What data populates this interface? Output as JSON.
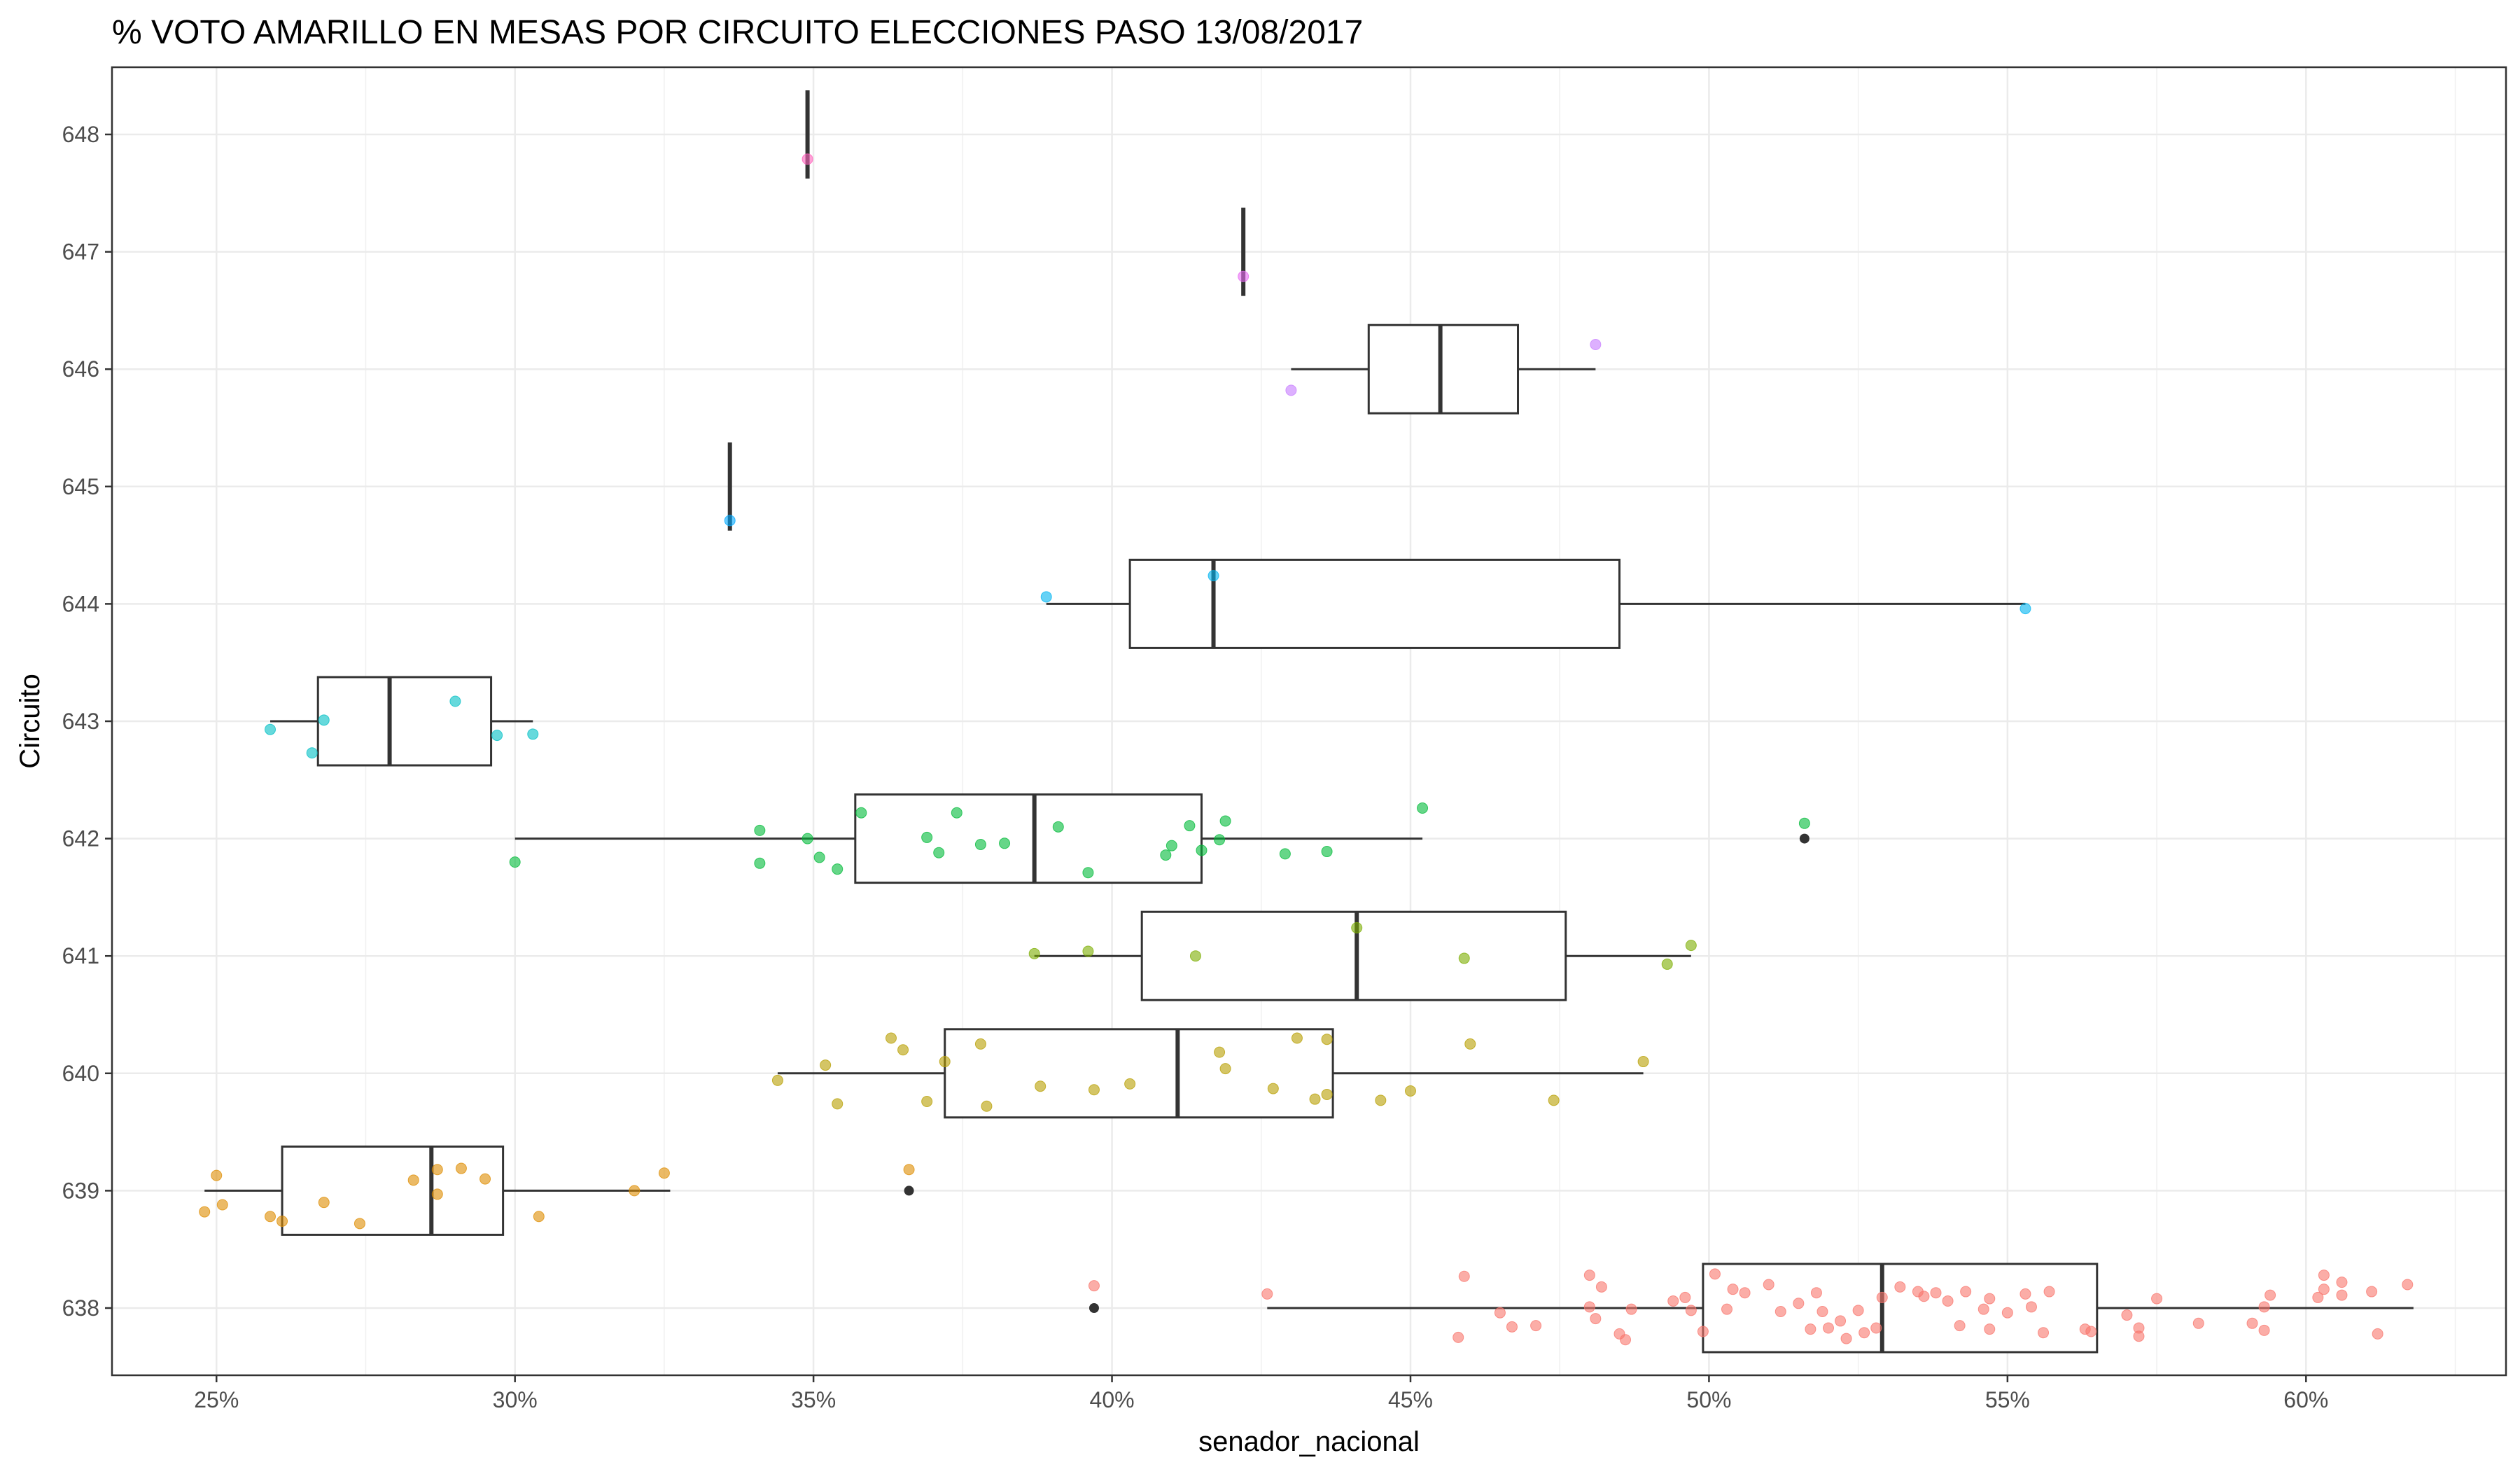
{
  "chart_data": {
    "type": "boxplot",
    "orientation": "horizontal",
    "title": "% VOTO AMARILLO EN MESAS POR CIRCUITO  ELECCIONES PASO 13/08/2017",
    "xlabel": "senador_nacional",
    "ylabel": "Circuito",
    "xlim": [
      0.2325,
      0.6335
    ],
    "x_ticks": [
      0.25,
      0.3,
      0.35,
      0.4,
      0.45,
      0.5,
      0.55,
      0.6
    ],
    "x_tick_labels": [
      "25%",
      "30%",
      "35%",
      "40%",
      "45%",
      "50%",
      "55%",
      "60%"
    ],
    "categories": [
      "638",
      "639",
      "640",
      "641",
      "642",
      "643",
      "644",
      "645",
      "646",
      "647",
      "648"
    ],
    "grid": true,
    "legend": "none",
    "boxes": [
      {
        "circuito": "638",
        "color": "#F8766D",
        "whisker_low": 0.426,
        "q1": 0.499,
        "median": 0.529,
        "q3": 0.565,
        "whisker_high": 0.618,
        "outliers": [
          0.397
        ]
      },
      {
        "circuito": "639",
        "color": "#DE8C00",
        "whisker_low": 0.248,
        "q1": 0.261,
        "median": 0.286,
        "q3": 0.298,
        "whisker_high": 0.326,
        "outliers": [
          0.366
        ]
      },
      {
        "circuito": "640",
        "color": "#B79F00",
        "whisker_low": 0.344,
        "q1": 0.372,
        "median": 0.411,
        "q3": 0.437,
        "whisker_high": 0.489,
        "outliers": []
      },
      {
        "circuito": "641",
        "color": "#7CAE00",
        "whisker_low": 0.387,
        "q1": 0.405,
        "median": 0.441,
        "q3": 0.476,
        "whisker_high": 0.497,
        "outliers": []
      },
      {
        "circuito": "642",
        "color": "#00BA38",
        "whisker_low": 0.3,
        "q1": 0.357,
        "median": 0.387,
        "q3": 0.415,
        "whisker_high": 0.452,
        "outliers": [
          0.516
        ]
      },
      {
        "circuito": "643",
        "color": "#00BFC4",
        "whisker_low": 0.259,
        "q1": 0.267,
        "median": 0.279,
        "q3": 0.296,
        "whisker_high": 0.303,
        "outliers": []
      },
      {
        "circuito": "644",
        "color": "#00B4F0",
        "whisker_low": 0.389,
        "q1": 0.403,
        "median": 0.417,
        "q3": 0.485,
        "whisker_high": 0.553,
        "outliers": []
      },
      {
        "circuito": "645",
        "color": "#00A9FF",
        "whisker_low": 0.336,
        "q1": 0.336,
        "median": 0.336,
        "q3": 0.336,
        "whisker_high": 0.336,
        "outliers": []
      },
      {
        "circuito": "646",
        "color": "#C77CFF",
        "whisker_low": 0.43,
        "q1": 0.443,
        "median": 0.455,
        "q3": 0.468,
        "whisker_high": 0.481,
        "outliers": []
      },
      {
        "circuito": "647",
        "color": "#E76BF3",
        "whisker_low": 0.422,
        "q1": 0.422,
        "median": 0.422,
        "q3": 0.422,
        "whisker_high": 0.422,
        "outliers": []
      },
      {
        "circuito": "648",
        "color": "#FF62BC",
        "whisker_low": 0.349,
        "q1": 0.349,
        "median": 0.349,
        "q3": 0.349,
        "whisker_high": 0.349,
        "outliers": []
      }
    ],
    "points": [
      {
        "circuito": "638",
        "x": 0.397,
        "y": 638.19
      },
      {
        "circuito": "638",
        "x": 0.426,
        "y": 638.12
      },
      {
        "circuito": "638",
        "x": 0.459,
        "y": 638.27
      },
      {
        "circuito": "638",
        "x": 0.458,
        "y": 637.75
      },
      {
        "circuito": "638",
        "x": 0.465,
        "y": 637.96
      },
      {
        "circuito": "638",
        "x": 0.467,
        "y": 637.84
      },
      {
        "circuito": "638",
        "x": 0.471,
        "y": 637.85
      },
      {
        "circuito": "638",
        "x": 0.48,
        "y": 638.28
      },
      {
        "circuito": "638",
        "x": 0.482,
        "y": 638.18
      },
      {
        "circuito": "638",
        "x": 0.48,
        "y": 638.01
      },
      {
        "circuito": "638",
        "x": 0.481,
        "y": 637.91
      },
      {
        "circuito": "638",
        "x": 0.485,
        "y": 637.78
      },
      {
        "circuito": "638",
        "x": 0.486,
        "y": 637.73
      },
      {
        "circuito": "638",
        "x": 0.487,
        "y": 637.99
      },
      {
        "circuito": "638",
        "x": 0.494,
        "y": 638.06
      },
      {
        "circuito": "638",
        "x": 0.496,
        "y": 638.09
      },
      {
        "circuito": "638",
        "x": 0.497,
        "y": 637.98
      },
      {
        "circuito": "638",
        "x": 0.499,
        "y": 637.8
      },
      {
        "circuito": "638",
        "x": 0.501,
        "y": 638.29
      },
      {
        "circuito": "638",
        "x": 0.503,
        "y": 637.99
      },
      {
        "circuito": "638",
        "x": 0.504,
        "y": 638.16
      },
      {
        "circuito": "638",
        "x": 0.506,
        "y": 638.13
      },
      {
        "circuito": "638",
        "x": 0.51,
        "y": 638.2
      },
      {
        "circuito": "638",
        "x": 0.512,
        "y": 637.97
      },
      {
        "circuito": "638",
        "x": 0.515,
        "y": 638.04
      },
      {
        "circuito": "638",
        "x": 0.517,
        "y": 637.82
      },
      {
        "circuito": "638",
        "x": 0.518,
        "y": 638.13
      },
      {
        "circuito": "638",
        "x": 0.519,
        "y": 637.97
      },
      {
        "circuito": "638",
        "x": 0.52,
        "y": 637.83
      },
      {
        "circuito": "638",
        "x": 0.522,
        "y": 637.89
      },
      {
        "circuito": "638",
        "x": 0.523,
        "y": 637.74
      },
      {
        "circuito": "638",
        "x": 0.525,
        "y": 637.98
      },
      {
        "circuito": "638",
        "x": 0.526,
        "y": 637.79
      },
      {
        "circuito": "638",
        "x": 0.528,
        "y": 637.83
      },
      {
        "circuito": "638",
        "x": 0.529,
        "y": 638.09
      },
      {
        "circuito": "638",
        "x": 0.532,
        "y": 638.18
      },
      {
        "circuito": "638",
        "x": 0.535,
        "y": 638.14
      },
      {
        "circuito": "638",
        "x": 0.536,
        "y": 638.1
      },
      {
        "circuito": "638",
        "x": 0.538,
        "y": 638.13
      },
      {
        "circuito": "638",
        "x": 0.54,
        "y": 638.06
      },
      {
        "circuito": "638",
        "x": 0.542,
        "y": 637.85
      },
      {
        "circuito": "638",
        "x": 0.543,
        "y": 638.14
      },
      {
        "circuito": "638",
        "x": 0.546,
        "y": 637.99
      },
      {
        "circuito": "638",
        "x": 0.547,
        "y": 637.82
      },
      {
        "circuito": "638",
        "x": 0.547,
        "y": 638.08
      },
      {
        "circuito": "638",
        "x": 0.55,
        "y": 637.96
      },
      {
        "circuito": "638",
        "x": 0.553,
        "y": 638.12
      },
      {
        "circuito": "638",
        "x": 0.554,
        "y": 638.01
      },
      {
        "circuito": "638",
        "x": 0.556,
        "y": 637.79
      },
      {
        "circuito": "638",
        "x": 0.557,
        "y": 638.14
      },
      {
        "circuito": "638",
        "x": 0.563,
        "y": 637.82
      },
      {
        "circuito": "638",
        "x": 0.564,
        "y": 637.8
      },
      {
        "circuito": "638",
        "x": 0.57,
        "y": 637.94
      },
      {
        "circuito": "638",
        "x": 0.572,
        "y": 637.83
      },
      {
        "circuito": "638",
        "x": 0.572,
        "y": 637.76
      },
      {
        "circuito": "638",
        "x": 0.575,
        "y": 638.08
      },
      {
        "circuito": "638",
        "x": 0.582,
        "y": 637.87
      },
      {
        "circuito": "638",
        "x": 0.591,
        "y": 637.87
      },
      {
        "circuito": "638",
        "x": 0.593,
        "y": 638.01
      },
      {
        "circuito": "638",
        "x": 0.594,
        "y": 638.11
      },
      {
        "circuito": "638",
        "x": 0.593,
        "y": 637.81
      },
      {
        "circuito": "638",
        "x": 0.603,
        "y": 638.28
      },
      {
        "circuito": "638",
        "x": 0.603,
        "y": 638.16
      },
      {
        "circuito": "638",
        "x": 0.602,
        "y": 638.09
      },
      {
        "circuito": "638",
        "x": 0.606,
        "y": 638.22
      },
      {
        "circuito": "638",
        "x": 0.606,
        "y": 638.11
      },
      {
        "circuito": "638",
        "x": 0.611,
        "y": 638.14
      },
      {
        "circuito": "638",
        "x": 0.612,
        "y": 637.78
      },
      {
        "circuito": "638",
        "x": 0.617,
        "y": 638.2
      },
      {
        "circuito": "639",
        "x": 0.248,
        "y": 638.82
      },
      {
        "circuito": "639",
        "x": 0.25,
        "y": 639.13
      },
      {
        "circuito": "639",
        "x": 0.251,
        "y": 638.88
      },
      {
        "circuito": "639",
        "x": 0.259,
        "y": 638.78
      },
      {
        "circuito": "639",
        "x": 0.261,
        "y": 638.74
      },
      {
        "circuito": "639",
        "x": 0.268,
        "y": 638.9
      },
      {
        "circuito": "639",
        "x": 0.274,
        "y": 638.72
      },
      {
        "circuito": "639",
        "x": 0.283,
        "y": 639.09
      },
      {
        "circuito": "639",
        "x": 0.287,
        "y": 639.18
      },
      {
        "circuito": "639",
        "x": 0.287,
        "y": 638.97
      },
      {
        "circuito": "639",
        "x": 0.291,
        "y": 639.19
      },
      {
        "circuito": "639",
        "x": 0.295,
        "y": 639.1
      },
      {
        "circuito": "639",
        "x": 0.304,
        "y": 638.78
      },
      {
        "circuito": "639",
        "x": 0.32,
        "y": 639.0
      },
      {
        "circuito": "639",
        "x": 0.325,
        "y": 639.15
      },
      {
        "circuito": "639",
        "x": 0.366,
        "y": 639.18
      },
      {
        "circuito": "640",
        "x": 0.344,
        "y": 639.94
      },
      {
        "circuito": "640",
        "x": 0.352,
        "y": 640.07
      },
      {
        "circuito": "640",
        "x": 0.354,
        "y": 639.74
      },
      {
        "circuito": "640",
        "x": 0.363,
        "y": 640.3
      },
      {
        "circuito": "640",
        "x": 0.365,
        "y": 640.2
      },
      {
        "circuito": "640",
        "x": 0.369,
        "y": 639.76
      },
      {
        "circuito": "640",
        "x": 0.372,
        "y": 640.1
      },
      {
        "circuito": "640",
        "x": 0.378,
        "y": 640.25
      },
      {
        "circuito": "640",
        "x": 0.379,
        "y": 639.72
      },
      {
        "circuito": "640",
        "x": 0.388,
        "y": 639.89
      },
      {
        "circuito": "640",
        "x": 0.397,
        "y": 639.86
      },
      {
        "circuito": "640",
        "x": 0.403,
        "y": 639.91
      },
      {
        "circuito": "640",
        "x": 0.418,
        "y": 640.18
      },
      {
        "circuito": "640",
        "x": 0.419,
        "y": 640.04
      },
      {
        "circuito": "640",
        "x": 0.427,
        "y": 639.87
      },
      {
        "circuito": "640",
        "x": 0.431,
        "y": 640.3
      },
      {
        "circuito": "640",
        "x": 0.434,
        "y": 639.78
      },
      {
        "circuito": "640",
        "x": 0.436,
        "y": 640.29
      },
      {
        "circuito": "640",
        "x": 0.436,
        "y": 639.82
      },
      {
        "circuito": "640",
        "x": 0.445,
        "y": 639.77
      },
      {
        "circuito": "640",
        "x": 0.45,
        "y": 639.85
      },
      {
        "circuito": "640",
        "x": 0.46,
        "y": 640.25
      },
      {
        "circuito": "640",
        "x": 0.474,
        "y": 639.77
      },
      {
        "circuito": "640",
        "x": 0.489,
        "y": 640.1
      },
      {
        "circuito": "641",
        "x": 0.387,
        "y": 641.02
      },
      {
        "circuito": "641",
        "x": 0.396,
        "y": 641.04
      },
      {
        "circuito": "641",
        "x": 0.414,
        "y": 641.0
      },
      {
        "circuito": "641",
        "x": 0.441,
        "y": 641.24
      },
      {
        "circuito": "641",
        "x": 0.459,
        "y": 640.98
      },
      {
        "circuito": "641",
        "x": 0.493,
        "y": 640.93
      },
      {
        "circuito": "641",
        "x": 0.497,
        "y": 641.09
      },
      {
        "circuito": "642",
        "x": 0.3,
        "y": 641.8
      },
      {
        "circuito": "642",
        "x": 0.341,
        "y": 642.07
      },
      {
        "circuito": "642",
        "x": 0.341,
        "y": 641.79
      },
      {
        "circuito": "642",
        "x": 0.349,
        "y": 642.0
      },
      {
        "circuito": "642",
        "x": 0.351,
        "y": 641.84
      },
      {
        "circuito": "642",
        "x": 0.354,
        "y": 641.74
      },
      {
        "circuito": "642",
        "x": 0.358,
        "y": 642.22
      },
      {
        "circuito": "642",
        "x": 0.369,
        "y": 642.01
      },
      {
        "circuito": "642",
        "x": 0.371,
        "y": 641.88
      },
      {
        "circuito": "642",
        "x": 0.374,
        "y": 642.22
      },
      {
        "circuito": "642",
        "x": 0.378,
        "y": 641.95
      },
      {
        "circuito": "642",
        "x": 0.382,
        "y": 641.96
      },
      {
        "circuito": "642",
        "x": 0.391,
        "y": 642.1
      },
      {
        "circuito": "642",
        "x": 0.396,
        "y": 641.71
      },
      {
        "circuito": "642",
        "x": 0.409,
        "y": 641.86
      },
      {
        "circuito": "642",
        "x": 0.41,
        "y": 641.94
      },
      {
        "circuito": "642",
        "x": 0.413,
        "y": 642.11
      },
      {
        "circuito": "642",
        "x": 0.415,
        "y": 641.9
      },
      {
        "circuito": "642",
        "x": 0.418,
        "y": 641.99
      },
      {
        "circuito": "642",
        "x": 0.419,
        "y": 642.15
      },
      {
        "circuito": "642",
        "x": 0.429,
        "y": 641.87
      },
      {
        "circuito": "642",
        "x": 0.436,
        "y": 641.89
      },
      {
        "circuito": "642",
        "x": 0.452,
        "y": 642.26
      },
      {
        "circuito": "642",
        "x": 0.516,
        "y": 642.13
      },
      {
        "circuito": "643",
        "x": 0.259,
        "y": 642.93
      },
      {
        "circuito": "643",
        "x": 0.266,
        "y": 642.73
      },
      {
        "circuito": "643",
        "x": 0.268,
        "y": 643.01
      },
      {
        "circuito": "643",
        "x": 0.29,
        "y": 643.17
      },
      {
        "circuito": "643",
        "x": 0.297,
        "y": 642.88
      },
      {
        "circuito": "643",
        "x": 0.303,
        "y": 642.89
      },
      {
        "circuito": "644",
        "x": 0.389,
        "y": 644.06
      },
      {
        "circuito": "644",
        "x": 0.417,
        "y": 644.24
      },
      {
        "circuito": "644",
        "x": 0.553,
        "y": 643.96
      },
      {
        "circuito": "645",
        "x": 0.336,
        "y": 644.71
      },
      {
        "circuito": "646",
        "x": 0.43,
        "y": 645.82
      },
      {
        "circuito": "646",
        "x": 0.481,
        "y": 646.21
      },
      {
        "circuito": "647",
        "x": 0.422,
        "y": 646.79
      },
      {
        "circuito": "648",
        "x": 0.349,
        "y": 647.79
      }
    ]
  }
}
